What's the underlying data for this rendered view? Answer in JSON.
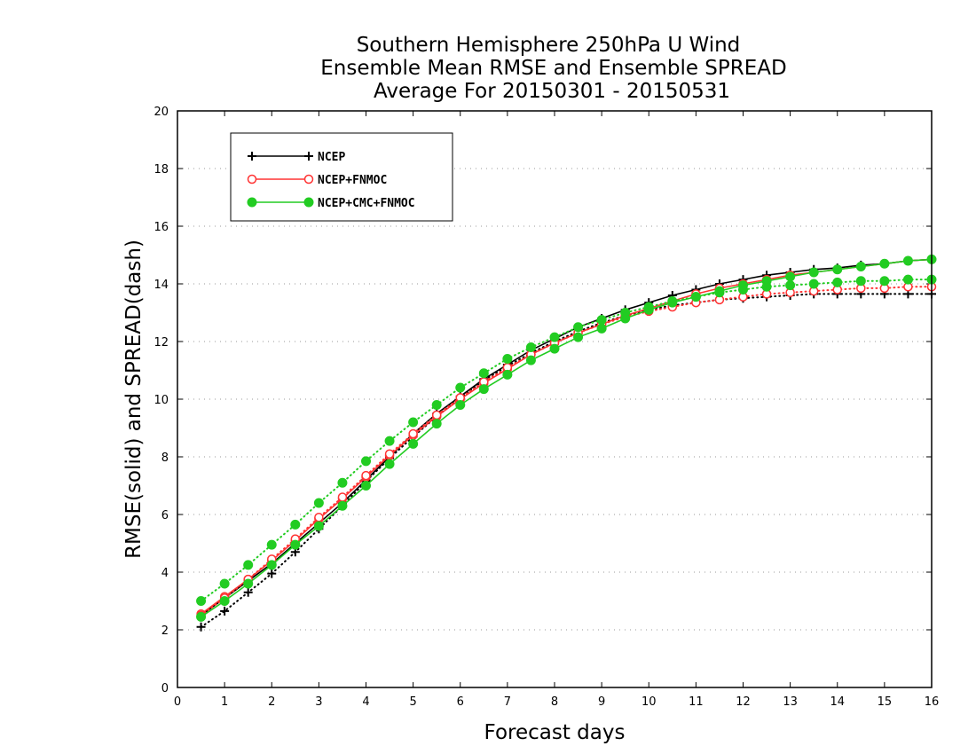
{
  "chart_data": {
    "type": "line",
    "title_lines": [
      "Southern Hemisphere 250hPa U Wind",
      "Ensemble Mean RMSE and Ensemble SPREAD",
      "Average For 20150301 - 20150531"
    ],
    "xlabel": "Forecast days",
    "ylabel": "RMSE(solid) and SPREAD(dash)",
    "xlim": [
      0,
      16
    ],
    "ylim": [
      0,
      20
    ],
    "x_ticks": [
      "0",
      "1",
      "2",
      "3",
      "4",
      "5",
      "6",
      "7",
      "8",
      "9",
      "10",
      "11",
      "12",
      "13",
      "14",
      "15",
      "16"
    ],
    "y_ticks": [
      "0",
      "2",
      "4",
      "6",
      "8",
      "10",
      "12",
      "14",
      "16",
      "18",
      "20"
    ],
    "grid": "dotted horizontal",
    "legend_position": "top-left",
    "x": [
      0.5,
      1,
      1.5,
      2,
      2.5,
      3,
      3.5,
      4,
      4.5,
      5,
      5.5,
      6,
      6.5,
      7,
      7.5,
      8,
      8.5,
      9,
      9.5,
      10,
      10.5,
      11,
      11.5,
      12,
      12.5,
      13,
      13.5,
      14,
      14.5,
      15,
      15.5,
      16
    ],
    "series": [
      {
        "name": "NCEP",
        "color": "#000000",
        "marker": "plus",
        "rmse": [
          2.5,
          3.1,
          3.7,
          4.3,
          5.0,
          5.7,
          6.4,
          7.2,
          8.0,
          8.8,
          9.5,
          10.1,
          10.7,
          11.2,
          11.7,
          12.1,
          12.5,
          12.8,
          13.1,
          13.35,
          13.6,
          13.8,
          14.0,
          14.15,
          14.3,
          14.4,
          14.5,
          14.55,
          14.65,
          14.7,
          14.8,
          14.85
        ],
        "spread": [
          2.1,
          2.65,
          3.3,
          3.95,
          4.7,
          5.5,
          6.3,
          7.15,
          7.95,
          8.7,
          9.4,
          10.05,
          10.65,
          11.15,
          11.6,
          12.0,
          12.35,
          12.65,
          12.9,
          13.1,
          13.25,
          13.35,
          13.45,
          13.5,
          13.55,
          13.6,
          13.65,
          13.65,
          13.65,
          13.65,
          13.65,
          13.65
        ]
      },
      {
        "name": "NCEP+FNMOC",
        "color": "#ff3333",
        "marker": "open-circle",
        "rmse": [
          2.55,
          3.15,
          3.75,
          4.4,
          5.1,
          5.85,
          6.55,
          7.3,
          8.05,
          8.75,
          9.4,
          10.0,
          10.55,
          11.05,
          11.55,
          11.95,
          12.3,
          12.6,
          12.9,
          13.15,
          13.4,
          13.65,
          13.85,
          14.0,
          14.15,
          14.3,
          14.4,
          14.5,
          14.6,
          14.7,
          14.8,
          14.85
        ],
        "spread": [
          2.5,
          3.1,
          3.75,
          4.45,
          5.15,
          5.9,
          6.6,
          7.35,
          8.1,
          8.8,
          9.45,
          10.05,
          10.6,
          11.1,
          11.55,
          11.95,
          12.3,
          12.6,
          12.85,
          13.05,
          13.2,
          13.35,
          13.45,
          13.55,
          13.65,
          13.7,
          13.75,
          13.8,
          13.85,
          13.85,
          13.9,
          13.9
        ]
      },
      {
        "name": "NCEP+CMC+FNMOC",
        "color": "#22cc22",
        "marker": "filled-circle",
        "rmse": [
          2.45,
          3.0,
          3.6,
          4.25,
          4.95,
          5.6,
          6.3,
          7.0,
          7.75,
          8.45,
          9.15,
          9.8,
          10.35,
          10.85,
          11.35,
          11.75,
          12.15,
          12.45,
          12.8,
          13.1,
          13.35,
          13.55,
          13.75,
          13.95,
          14.1,
          14.25,
          14.4,
          14.5,
          14.6,
          14.7,
          14.8,
          14.85
        ],
        "spread": [
          3.0,
          3.6,
          4.25,
          4.95,
          5.65,
          6.4,
          7.1,
          7.85,
          8.55,
          9.2,
          9.8,
          10.4,
          10.9,
          11.4,
          11.8,
          12.15,
          12.5,
          12.75,
          13.0,
          13.2,
          13.4,
          13.55,
          13.7,
          13.8,
          13.9,
          13.95,
          14.0,
          14.05,
          14.1,
          14.1,
          14.15,
          14.15
        ]
      }
    ]
  }
}
